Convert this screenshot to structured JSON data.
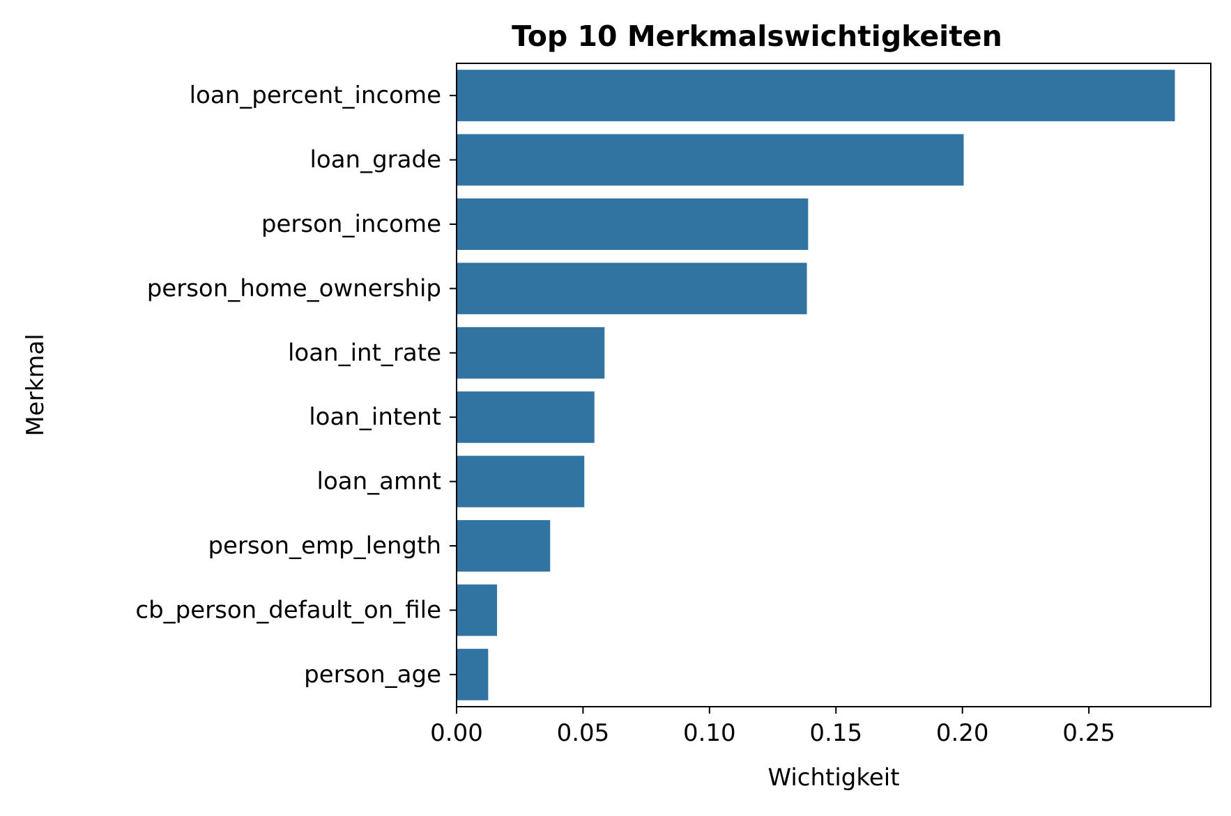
{
  "chart_data": {
    "type": "bar",
    "orientation": "horizontal",
    "title": "Top 10 Merkmalswichtigkeiten",
    "xlabel": "Wichtigkeit",
    "ylabel": "Merkmal",
    "categories": [
      "loan_percent_income",
      "loan_grade",
      "person_income",
      "person_home_ownership",
      "loan_int_rate",
      "loan_intent",
      "loan_amnt",
      "person_emp_length",
      "cb_person_default_on_file",
      "person_age"
    ],
    "values": [
      0.284,
      0.2005,
      0.139,
      0.1385,
      0.0585,
      0.0545,
      0.0505,
      0.037,
      0.016,
      0.0125
    ],
    "xlim": [
      0,
      0.2982
    ],
    "xticks": [
      0.0,
      0.05,
      0.1,
      0.15,
      0.2,
      0.25
    ],
    "xtick_labels": [
      "0.00",
      "0.05",
      "0.10",
      "0.15",
      "0.20",
      "0.25"
    ],
    "bar_color": "#3274a1",
    "grid": false,
    "legend": "none"
  }
}
